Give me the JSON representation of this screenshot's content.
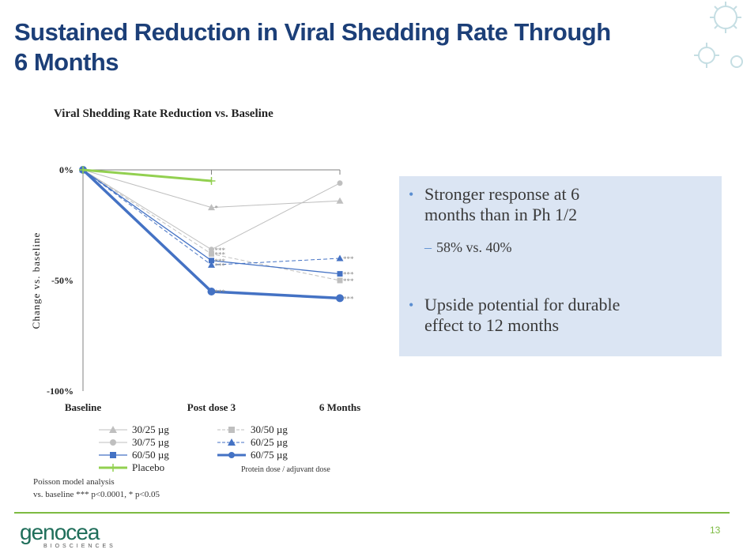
{
  "slide": {
    "title_line1": "Sustained Reduction in Viral Shedding Rate Through",
    "title_line2": "6 Months",
    "page_number": "13"
  },
  "callout": {
    "bullet1_line1": "Stronger response at 6",
    "bullet1_line2": "months than in Ph 1/2",
    "sub_bullet": "58% vs. 40%",
    "bullet2_line1": "Upside potential for durable",
    "bullet2_line2": "effect to 12 months"
  },
  "legend_note": "Protein dose / adjuvant dose",
  "footnote": {
    "line1": "Poisson model analysis",
    "line2": "vs. baseline *** p<0.0001, * p<0.05"
  },
  "logo": {
    "word": "genocea",
    "sub": "BIOSCIENCES"
  },
  "colors": {
    "title": "#1c3f78",
    "accent_green": "#7dbb42",
    "callout_bg": "#dbe5f3",
    "blue": "#4472c4",
    "gray": "#bfbfbf",
    "placebo": "#92d050"
  },
  "chart_data": {
    "type": "line",
    "title": "Viral Shedding Rate Reduction vs. Baseline",
    "ylabel": "Change vs. baseline",
    "xlabel": "",
    "categories": [
      "Baseline",
      "Post dose 3",
      "6 Months"
    ],
    "ylim": [
      -100,
      0
    ],
    "yticks": [
      0,
      -50,
      -100
    ],
    "ytick_labels": [
      "0%",
      "-50%",
      "-100%"
    ],
    "legend_position": "bottom",
    "series": [
      {
        "name": "30/25 µg",
        "values": [
          0,
          -17,
          -14
        ],
        "color": "#bfbfbf",
        "marker": "triangle",
        "dash": false,
        "width": 1,
        "sig": [
          "",
          "*",
          ""
        ]
      },
      {
        "name": "30/50 µg",
        "values": [
          0,
          -38,
          -50
        ],
        "color": "#bfbfbf",
        "marker": "square",
        "dash": true,
        "width": 1,
        "sig": [
          "",
          "***",
          "***"
        ]
      },
      {
        "name": "30/75 µg",
        "values": [
          0,
          -36,
          -6
        ],
        "color": "#bfbfbf",
        "marker": "circle",
        "dash": false,
        "width": 1,
        "sig": [
          "",
          "***",
          ""
        ]
      },
      {
        "name": "60/25 µg",
        "values": [
          0,
          -43,
          -40
        ],
        "color": "#4472c4",
        "marker": "triangle",
        "dash": true,
        "width": 1,
        "sig": [
          "",
          "***",
          "***"
        ]
      },
      {
        "name": "60/50 µg",
        "values": [
          0,
          -41,
          -47
        ],
        "color": "#4472c4",
        "marker": "square",
        "dash": false,
        "width": 1.3,
        "sig": [
          "",
          "***",
          "***"
        ]
      },
      {
        "name": "60/75 µg",
        "values": [
          0,
          -55,
          -58
        ],
        "color": "#4472c4",
        "marker": "circle",
        "dash": false,
        "width": 3.5,
        "sig": [
          "",
          "***",
          "***"
        ]
      },
      {
        "name": "Placebo",
        "values": [
          0,
          -5,
          null
        ],
        "color": "#92d050",
        "marker": "plus",
        "dash": false,
        "width": 3,
        "sig": [
          "",
          "",
          ""
        ]
      }
    ]
  }
}
